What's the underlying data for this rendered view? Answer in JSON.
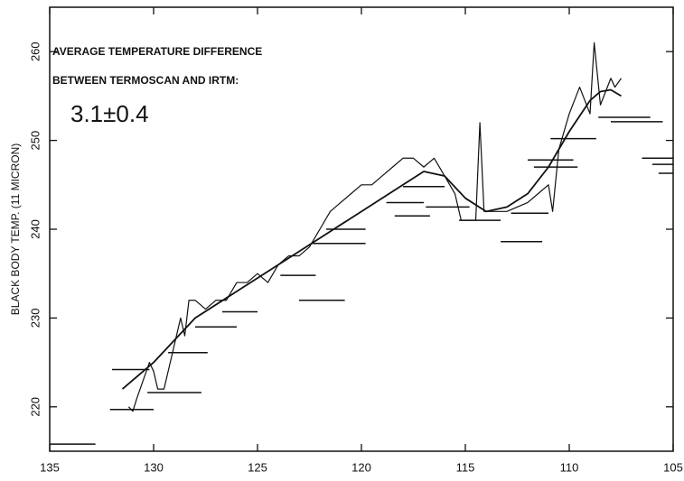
{
  "chart_data": {
    "type": "line",
    "ylabel": "BLACK BODY TEMP. (11 MICRON)",
    "annotations": [
      "AVERAGE TEMPERATURE DIFFERENCE",
      "BETWEEN TERMOSCAN AND IRTM:",
      "3.1±0.4"
    ],
    "xlim": [
      135,
      105
    ],
    "ylim": [
      215,
      265
    ],
    "xticks": [
      135,
      130,
      125,
      120,
      115,
      110,
      105
    ],
    "yticks": [
      220,
      230,
      240,
      250,
      260
    ],
    "color": "#111111",
    "series": [
      {
        "x": [
          131.2,
          131,
          130.8,
          130.5,
          130.2,
          130,
          129.8,
          129.5,
          129.2,
          129,
          128.7,
          128.5,
          128.3,
          128,
          127.5,
          127,
          126.5,
          126,
          125.5,
          125,
          124.5,
          124,
          123.5,
          123,
          122.5,
          122,
          121.5,
          121,
          120.5,
          120,
          119.5,
          119,
          118.5,
          118,
          117.5,
          117,
          116.5,
          116,
          115.5,
          115.2,
          115,
          114.5,
          114.3,
          114.1,
          113.5,
          113,
          112,
          111.5,
          111,
          110.8,
          110.5,
          110,
          109.5,
          109,
          108.8,
          108.5,
          108,
          107.8,
          107.5
        ],
        "values": [
          220,
          219.5,
          221,
          223,
          225,
          224,
          222,
          222,
          225,
          227,
          230,
          228,
          232,
          232,
          231,
          232,
          232,
          234,
          234,
          235,
          234,
          236,
          237,
          237,
          238,
          240,
          242,
          243,
          244,
          245,
          245,
          246,
          247,
          248,
          248,
          247,
          248,
          246,
          244,
          241,
          241,
          241,
          252,
          242,
          242,
          242,
          243,
          244,
          245,
          242,
          249,
          253,
          256,
          253,
          261,
          254,
          257,
          256,
          257
        ]
      },
      {
        "x": [
          131.5,
          130,
          128,
          126,
          124,
          122,
          120,
          118,
          117,
          116,
          115,
          114,
          113,
          112,
          111,
          110,
          109,
          108.5,
          108,
          107.5
        ],
        "values": [
          222,
          225,
          230,
          233,
          236,
          239,
          242,
          245,
          246.5,
          246,
          243.5,
          242,
          242.5,
          244,
          247,
          251,
          254.5,
          255.5,
          255.7,
          255
        ]
      }
    ],
    "segments": [
      {
        "x": [
          135,
          132.8
        ],
        "y": 215.8
      },
      {
        "x": [
          132,
          130.2
        ],
        "y": 224.2
      },
      {
        "x": [
          132.1,
          130
        ],
        "y": 219.7
      },
      {
        "x": [
          130.3,
          127.7
        ],
        "y": 221.6
      },
      {
        "x": [
          129.3,
          127.4
        ],
        "y": 226.1
      },
      {
        "x": [
          128,
          126
        ],
        "y": 229
      },
      {
        "x": [
          126.7,
          125
        ],
        "y": 230.7
      },
      {
        "x": [
          123.9,
          122.2
        ],
        "y": 234.8
      },
      {
        "x": [
          123,
          120.8
        ],
        "y": 232
      },
      {
        "x": [
          122.4,
          119.8
        ],
        "y": 238.4
      },
      {
        "x": [
          121.7,
          119.8
        ],
        "y": 240
      },
      {
        "x": [
          118.8,
          117
        ],
        "y": 243
      },
      {
        "x": [
          118,
          116
        ],
        "y": 244.8
      },
      {
        "x": [
          118.4,
          116.7
        ],
        "y": 241.5
      },
      {
        "x": [
          116.9,
          114.8
        ],
        "y": 242.5
      },
      {
        "x": [
          115.3,
          113.3
        ],
        "y": 241
      },
      {
        "x": [
          113.3,
          111.3
        ],
        "y": 238.6
      },
      {
        "x": [
          112.8,
          111
        ],
        "y": 241.8
      },
      {
        "x": [
          111.7,
          109.6
        ],
        "y": 247
      },
      {
        "x": [
          110.9,
          108.7
        ],
        "y": 250.2
      },
      {
        "x": [
          112,
          109.8
        ],
        "y": 247.8
      },
      {
        "x": [
          108.6,
          106.1
        ],
        "y": 252.6
      },
      {
        "x": [
          108,
          105.5
        ],
        "y": 252.1
      },
      {
        "x": [
          106.5,
          105
        ],
        "y": 248
      },
      {
        "x": [
          105.7,
          105
        ],
        "y": 246.3
      },
      {
        "x": [
          106,
          105
        ],
        "y": 247.3
      }
    ]
  }
}
